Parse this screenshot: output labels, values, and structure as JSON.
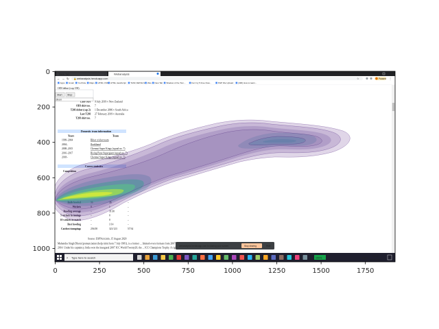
{
  "figure": {
    "x_ticks": [
      "0",
      "250",
      "500",
      "750",
      "1000",
      "1250",
      "1500",
      "1750"
    ],
    "y_ticks": [
      "0",
      "200",
      "400",
      "600",
      "800",
      "1000"
    ]
  },
  "browser": {
    "tabs": [
      "New Tab",
      "Webanalysis"
    ],
    "url": "webanalysis.herokuapp.com",
    "profile_label": "Paused",
    "bookmarks": [
      "Apps",
      "Gmail",
      "YouTube",
      "Maps",
      "HTML CSS",
      "HTML JavaScript",
      "TASK DETAILS",
      "Wes",
      "New Tab",
      "Shadow of the Tom...",
      "Far Cry 5 Free Dow...",
      "PHP File Upload",
      "(496) How to learn..."
    ]
  },
  "page": {
    "start_button": "Start",
    "stop_button": "Stop",
    "search_text": "dhoni",
    "info_rows": [
      {
        "label": "Last ODI",
        "value": "9 July 2019 v New Zealand"
      },
      {
        "label": "ODI shirt no.",
        "value": "7"
      },
      {
        "label": "T20I debut (cap 2)",
        "value": "1 December 2006 v South Africa"
      },
      {
        "label": "Last T20I",
        "value": "27 February 2019 v Australia"
      },
      {
        "label": "T20I shirt no.",
        "value": "7"
      }
    ],
    "domestic_header": "Domestic team information",
    "years_header": "Years",
    "team_header": "Team",
    "domestic_rows": [
      {
        "years": "1999–2004",
        "team": "Bihar cricket team"
      },
      {
        "years": "2004–",
        "team": "Jharkhand"
      },
      {
        "years": "2008–2015",
        "team": "Chennai Super Kings (squad no. 7)"
      },
      {
        "years": "2016–2017",
        "team": "Rising Pune Supergiant (squad no. 7)"
      },
      {
        "years": "2018–",
        "team": "Chennai Super Kings (squad no. 7)"
      }
    ],
    "career_header": "Career statistics",
    "competition_label": "Competition",
    "stat_rows": [
      {
        "label": "Balls bowled",
        "values": [
          "96",
          "36",
          "–"
        ]
      },
      {
        "label": "Wickets",
        "values": [
          "0",
          "1",
          "–"
        ]
      },
      {
        "label": "Bowling average",
        "values": [
          "–",
          "31.00",
          "–"
        ]
      },
      {
        "label": "5 wickets in innings",
        "values": [
          "–",
          "0",
          "–"
        ]
      },
      {
        "label": "10 wickets in match",
        "values": [
          "–",
          "0",
          "–"
        ]
      },
      {
        "label": "Best bowling",
        "values": [
          "–",
          "1/14",
          "–"
        ]
      },
      {
        "label": "Catches/stumpings",
        "values": [
          "256/38",
          "321/123",
          "57/34"
        ]
      }
    ],
    "source_text": "Source: ESPNcricinfo, 15 August 2020",
    "para_line1": "Mahendra Singh Dhoni (pronunciation (help·info) born 7 July 1981), is a former ... limited-overs formats from 2007 to 2016 and in Test cricket from 2008 to",
    "para_line2": "2014. Under his captaincy, India won the inaugural 2007 ICC World Twenty20, the ... ICC Champions Trophy. A right-handed middle-order batsman and wicket-"
  },
  "share_bar": {
    "message": "webanalysis.herokuapp.com is sharing your screen.",
    "stop_label": "Stop sharing",
    "hide_label": "Hide"
  },
  "taskbar": {
    "search_placeholder": "Type here to search",
    "battery": "100%",
    "lang": "ENG",
    "time": "19:02",
    "date": "08-10-2020"
  }
}
